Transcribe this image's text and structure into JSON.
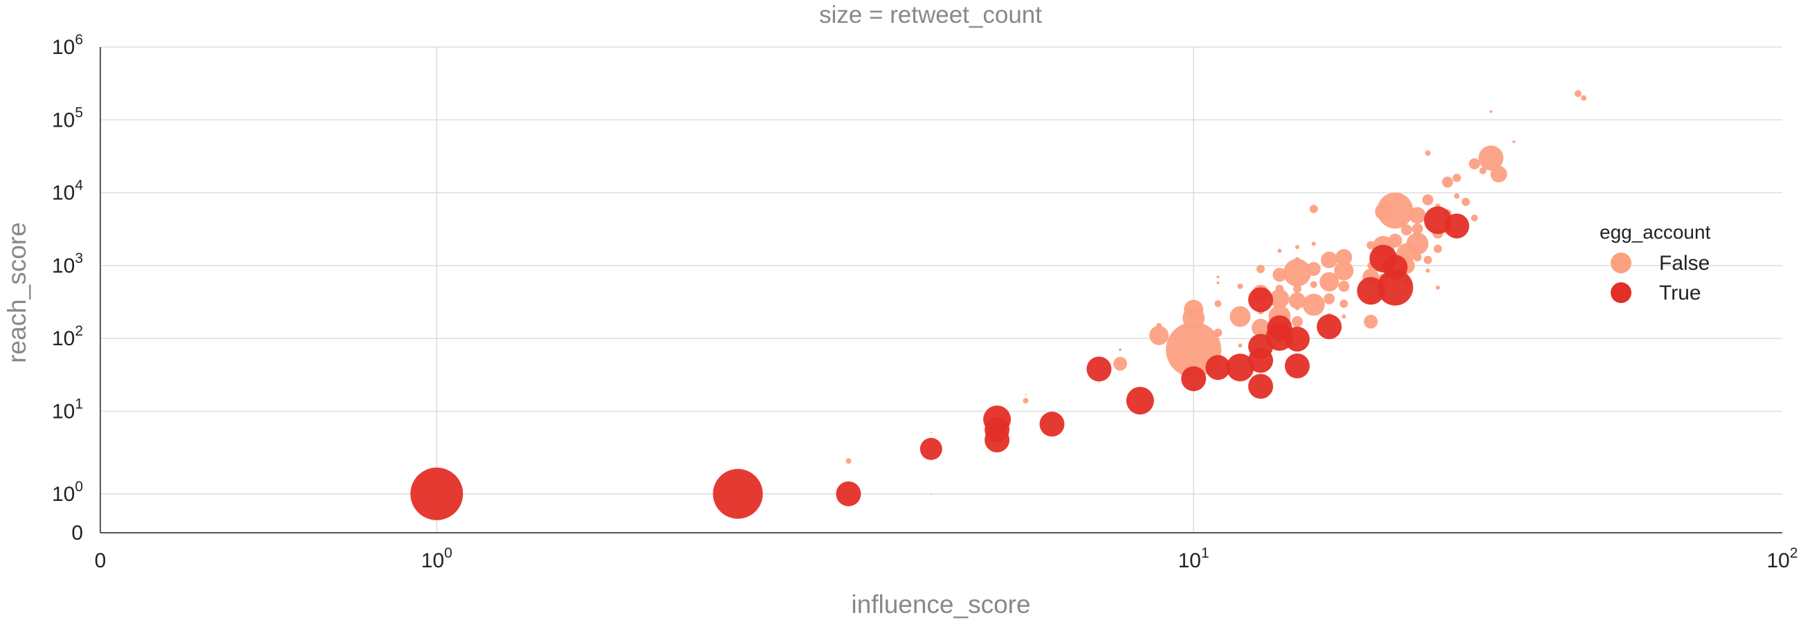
{
  "chart_data": {
    "type": "scatter",
    "title": "size = retweet_count",
    "xlabel": "influence_score",
    "ylabel": "reach_score",
    "xscale": "symlog",
    "yscale": "symlog",
    "xlim": [
      0,
      100
    ],
    "ylim": [
      0,
      1000000
    ],
    "x_ticks": [
      {
        "value": 0,
        "base": "0",
        "exp": ""
      },
      {
        "value": 1,
        "base": "10",
        "exp": "0"
      },
      {
        "value": 10,
        "base": "10",
        "exp": "1"
      },
      {
        "value": 100,
        "base": "10",
        "exp": "2"
      }
    ],
    "y_ticks": [
      {
        "value": 0,
        "base": "0",
        "exp": ""
      },
      {
        "value": 1,
        "base": "10",
        "exp": "0"
      },
      {
        "value": 10,
        "base": "10",
        "exp": "1"
      },
      {
        "value": 100,
        "base": "10",
        "exp": "2"
      },
      {
        "value": 1000,
        "base": "10",
        "exp": "3"
      },
      {
        "value": 10000,
        "base": "10",
        "exp": "4"
      },
      {
        "value": 100000,
        "base": "10",
        "exp": "5"
      },
      {
        "value": 1000000,
        "base": "10",
        "exp": "6"
      }
    ],
    "grid": true,
    "legend": {
      "title": "egg_account",
      "placement": "right",
      "entries": [
        {
          "label": "False",
          "color": "#fca082"
        },
        {
          "label": "True",
          "color": "#e32f27"
        }
      ]
    },
    "series": [
      {
        "name": "False",
        "color": "#fca082",
        "points": [
          [
            3.5,
            2.5,
            4
          ],
          [
            4.5,
            5.5,
            1
          ],
          [
            4.5,
            1.0,
            1
          ],
          [
            6.0,
            14,
            4
          ],
          [
            6.0,
            17,
            1
          ],
          [
            7.5,
            25,
            1
          ],
          [
            8.0,
            45,
            10
          ],
          [
            8.0,
            70,
            2
          ],
          [
            8.5,
            17,
            2
          ],
          [
            9.0,
            110,
            14
          ],
          [
            9.0,
            150,
            4
          ],
          [
            9.5,
            55,
            2
          ],
          [
            9.5,
            95,
            2
          ],
          [
            10.0,
            70,
            40
          ],
          [
            10.0,
            190,
            16
          ],
          [
            10.0,
            250,
            14
          ],
          [
            10.0,
            20,
            3
          ],
          [
            10.0,
            32,
            3
          ],
          [
            11.0,
            300,
            5
          ],
          [
            11.0,
            120,
            6
          ],
          [
            11.0,
            700,
            2
          ],
          [
            11.0,
            580,
            2
          ],
          [
            12.0,
            200,
            15
          ],
          [
            12.0,
            520,
            4
          ],
          [
            12.0,
            80,
            3
          ],
          [
            12.0,
            250,
            3
          ],
          [
            13.0,
            140,
            13
          ],
          [
            13.0,
            420,
            12
          ],
          [
            13.0,
            900,
            6
          ],
          [
            13.0,
            240,
            5
          ],
          [
            13.0,
            60,
            3
          ],
          [
            14.0,
            200,
            16
          ],
          [
            14.0,
            350,
            14
          ],
          [
            14.0,
            750,
            10
          ],
          [
            14.0,
            130,
            8
          ],
          [
            14.0,
            480,
            6
          ],
          [
            14.0,
            90,
            3
          ],
          [
            14.0,
            1600,
            3
          ],
          [
            15.0,
            800,
            20
          ],
          [
            15.0,
            330,
            12
          ],
          [
            15.0,
            170,
            8
          ],
          [
            15.0,
            480,
            6
          ],
          [
            15.0,
            1200,
            4
          ],
          [
            15.0,
            1800,
            3
          ],
          [
            15.0,
            260,
            3
          ],
          [
            16.0,
            290,
            16
          ],
          [
            16.0,
            900,
            10
          ],
          [
            16.0,
            6000,
            6
          ],
          [
            16.0,
            550,
            5
          ],
          [
            16.0,
            2000,
            3
          ],
          [
            17.0,
            600,
            14
          ],
          [
            17.0,
            1200,
            12
          ],
          [
            17.0,
            350,
            8
          ],
          [
            17.0,
            200,
            5
          ],
          [
            18.0,
            850,
            14
          ],
          [
            18.0,
            1300,
            12
          ],
          [
            18.0,
            520,
            8
          ],
          [
            18.0,
            300,
            6
          ],
          [
            18.0,
            200,
            3
          ],
          [
            20.0,
            700,
            12
          ],
          [
            20.0,
            170,
            10
          ],
          [
            20.0,
            350,
            6
          ],
          [
            20.0,
            1900,
            6
          ],
          [
            20.0,
            1000,
            5
          ],
          [
            21.0,
            1200,
            14
          ],
          [
            21.0,
            1800,
            16
          ],
          [
            21.0,
            5500,
            12
          ],
          [
            21.0,
            650,
            8
          ],
          [
            21.0,
            400,
            4
          ],
          [
            22.0,
            5700,
            26
          ],
          [
            22.0,
            2200,
            10
          ],
          [
            22.0,
            850,
            6
          ],
          [
            22.0,
            1400,
            4
          ],
          [
            23.0,
            1500,
            14
          ],
          [
            23.0,
            1000,
            12
          ],
          [
            23.0,
            3100,
            8
          ],
          [
            23.0,
            600,
            5
          ],
          [
            24.0,
            2000,
            16
          ],
          [
            24.0,
            4900,
            12
          ],
          [
            24.0,
            3200,
            8
          ],
          [
            24.0,
            1300,
            6
          ],
          [
            24.0,
            2600,
            4
          ],
          [
            25.0,
            1200,
            6
          ],
          [
            25.0,
            8000,
            8
          ],
          [
            25.0,
            35000,
            4
          ],
          [
            25.0,
            850,
            3
          ],
          [
            26.0,
            2800,
            8
          ],
          [
            26.0,
            1700,
            6
          ],
          [
            26.0,
            6500,
            4
          ],
          [
            26.0,
            500,
            3
          ],
          [
            27.0,
            14000,
            8
          ],
          [
            27.0,
            5200,
            6
          ],
          [
            27.0,
            3000,
            5
          ],
          [
            28.0,
            16000,
            6
          ],
          [
            28.0,
            9000,
            4
          ],
          [
            29.0,
            7500,
            6
          ],
          [
            30.0,
            25000,
            8
          ],
          [
            30.0,
            4500,
            5
          ],
          [
            31.0,
            20000,
            5
          ],
          [
            32.0,
            30000,
            18
          ],
          [
            32.0,
            130000,
            2
          ],
          [
            33.0,
            18000,
            12
          ],
          [
            35.0,
            50000,
            2
          ],
          [
            45.0,
            230000,
            5
          ],
          [
            46.0,
            200000,
            4
          ]
        ]
      },
      {
        "name": "True",
        "color": "#e32f27",
        "points": [
          [
            1.0,
            1.0,
            38
          ],
          [
            2.5,
            1.0,
            36
          ],
          [
            3.5,
            1.0,
            18
          ],
          [
            4.5,
            3.5,
            16
          ],
          [
            5.5,
            8,
            20
          ],
          [
            5.5,
            6,
            18
          ],
          [
            5.5,
            4.5,
            18
          ],
          [
            6.5,
            7,
            18
          ],
          [
            7.5,
            38,
            18
          ],
          [
            8.5,
            14,
            20
          ],
          [
            10.0,
            28,
            18
          ],
          [
            11.0,
            40,
            18
          ],
          [
            12.0,
            40,
            20
          ],
          [
            13.0,
            340,
            18
          ],
          [
            13.0,
            78,
            18
          ],
          [
            13.0,
            50,
            18
          ],
          [
            13.0,
            22,
            18
          ],
          [
            14.0,
            140,
            18
          ],
          [
            14.0,
            105,
            20
          ],
          [
            15.0,
            98,
            18
          ],
          [
            15.0,
            42,
            18
          ],
          [
            17.0,
            145,
            18
          ],
          [
            20.0,
            450,
            20
          ],
          [
            21.0,
            1250,
            20
          ],
          [
            22.0,
            950,
            18
          ],
          [
            22.0,
            500,
            26
          ],
          [
            26.0,
            4200,
            20
          ],
          [
            28.0,
            3500,
            18
          ]
        ]
      }
    ]
  }
}
